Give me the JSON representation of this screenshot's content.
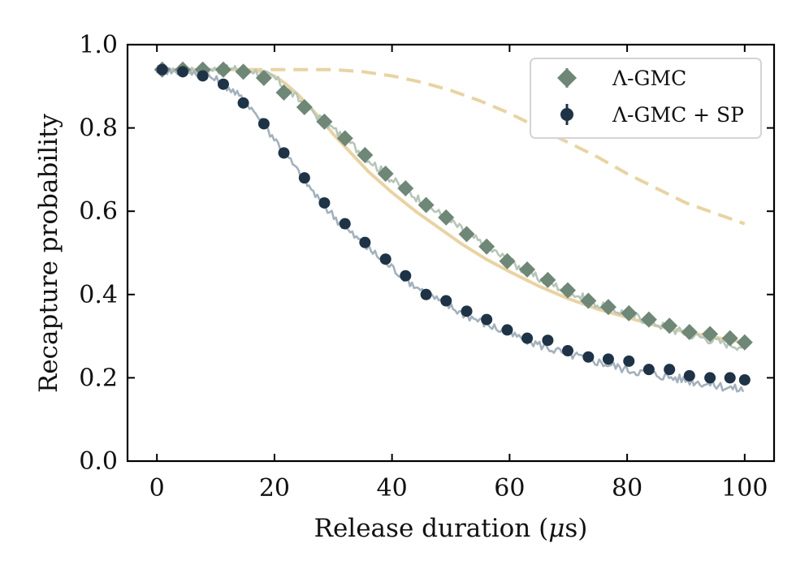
{
  "chart_data": {
    "type": "scatter",
    "title": "",
    "xlabel": "Release duration (",
    "xlabel_mu": "μ",
    "xlabel_unit": "s)",
    "ylabel": "Recapture probability",
    "xlim": [
      -5,
      105
    ],
    "ylim": [
      0.0,
      1.0
    ],
    "xticks": [
      0,
      20,
      40,
      60,
      80,
      100
    ],
    "yticks": [
      0.0,
      0.2,
      0.4,
      0.6,
      0.8,
      1.0
    ],
    "xtick_labels": [
      "0",
      "20",
      "40",
      "60",
      "80",
      "100"
    ],
    "ytick_labels": [
      "0.0",
      "0.2",
      "0.4",
      "0.6",
      "0.8",
      "1.0"
    ],
    "legend_position": "top-right",
    "series": [
      {
        "name": "Λ-GMC",
        "marker": "diamond",
        "color": "#6f8777",
        "x": [
          0.9,
          4.4,
          7.8,
          11.3,
          14.7,
          18.2,
          21.6,
          25.1,
          28.5,
          32.0,
          35.4,
          38.9,
          42.3,
          45.8,
          49.2,
          52.7,
          56.1,
          59.6,
          63.0,
          66.5,
          69.9,
          73.4,
          76.8,
          80.3,
          83.7,
          87.2,
          90.6,
          94.1,
          97.5,
          100.0
        ],
        "y": [
          0.94,
          0.94,
          0.94,
          0.94,
          0.935,
          0.92,
          0.885,
          0.85,
          0.815,
          0.775,
          0.735,
          0.69,
          0.655,
          0.615,
          0.585,
          0.545,
          0.515,
          0.48,
          0.46,
          0.435,
          0.41,
          0.385,
          0.37,
          0.355,
          0.34,
          0.325,
          0.31,
          0.305,
          0.295,
          0.285
        ]
      },
      {
        "name": "Λ-GMC + SP",
        "marker": "circle",
        "color": "#1f3347",
        "x": [
          0.9,
          4.4,
          7.8,
          11.3,
          14.7,
          18.2,
          21.6,
          25.1,
          28.5,
          32.0,
          35.4,
          38.9,
          42.3,
          45.8,
          49.2,
          52.7,
          56.1,
          59.6,
          63.0,
          66.5,
          69.9,
          73.4,
          76.8,
          80.3,
          83.7,
          87.2,
          90.6,
          94.1,
          97.5,
          100.0
        ],
        "y": [
          0.94,
          0.935,
          0.925,
          0.905,
          0.86,
          0.81,
          0.74,
          0.68,
          0.62,
          0.57,
          0.525,
          0.485,
          0.445,
          0.4,
          0.385,
          0.36,
          0.34,
          0.315,
          0.295,
          0.29,
          0.265,
          0.25,
          0.245,
          0.24,
          0.22,
          0.22,
          0.205,
          0.2,
          0.2,
          0.195
        ]
      }
    ],
    "traces": [
      {
        "name": "Λ-GMC trace",
        "color": "#b6c6b9",
        "x": [
          0,
          8,
          12,
          16,
          20,
          24,
          28,
          32,
          36,
          40,
          44,
          48,
          52,
          56,
          60,
          64,
          68,
          72,
          76,
          80,
          84,
          88,
          92,
          96,
          100
        ],
        "y": [
          0.94,
          0.94,
          0.94,
          0.94,
          0.92,
          0.87,
          0.82,
          0.775,
          0.725,
          0.675,
          0.635,
          0.595,
          0.555,
          0.515,
          0.48,
          0.445,
          0.42,
          0.395,
          0.37,
          0.355,
          0.335,
          0.315,
          0.3,
          0.285,
          0.275
        ]
      },
      {
        "name": "Λ-GMC + SP trace",
        "color": "#a3b1bd",
        "x": [
          0,
          4,
          8,
          12,
          16,
          20,
          24,
          28,
          32,
          36,
          40,
          44,
          48,
          52,
          56,
          60,
          64,
          68,
          72,
          76,
          80,
          84,
          88,
          92,
          96,
          100
        ],
        "y": [
          0.94,
          0.935,
          0.93,
          0.9,
          0.85,
          0.775,
          0.695,
          0.62,
          0.56,
          0.51,
          0.465,
          0.42,
          0.385,
          0.355,
          0.33,
          0.305,
          0.285,
          0.265,
          0.25,
          0.235,
          0.22,
          0.21,
          0.2,
          0.19,
          0.18,
          0.17
        ]
      }
    ],
    "fits": [
      {
        "name": "fit solid",
        "style": "solid",
        "color": "#e9d3a3",
        "x": [
          0,
          5,
          10,
          15,
          18,
          20,
          22,
          24,
          26,
          28,
          30,
          33,
          36,
          40,
          44,
          48,
          52,
          56,
          60,
          65,
          70,
          75,
          80,
          85,
          90,
          95,
          100
        ],
        "y": [
          0.94,
          0.94,
          0.94,
          0.94,
          0.935,
          0.925,
          0.905,
          0.88,
          0.85,
          0.82,
          0.785,
          0.74,
          0.695,
          0.645,
          0.6,
          0.56,
          0.52,
          0.485,
          0.455,
          0.42,
          0.39,
          0.365,
          0.345,
          0.325,
          0.31,
          0.297,
          0.285
        ]
      },
      {
        "name": "fit dashed",
        "style": "dashed",
        "color": "#e9d3a3",
        "x": [
          0,
          10,
          20,
          25,
          30,
          35,
          40,
          45,
          50,
          55,
          60,
          65,
          70,
          75,
          80,
          85,
          90,
          95,
          100
        ],
        "y": [
          0.94,
          0.94,
          0.94,
          0.94,
          0.94,
          0.935,
          0.925,
          0.91,
          0.89,
          0.865,
          0.835,
          0.8,
          0.765,
          0.73,
          0.69,
          0.655,
          0.62,
          0.595,
          0.57
        ]
      }
    ]
  }
}
